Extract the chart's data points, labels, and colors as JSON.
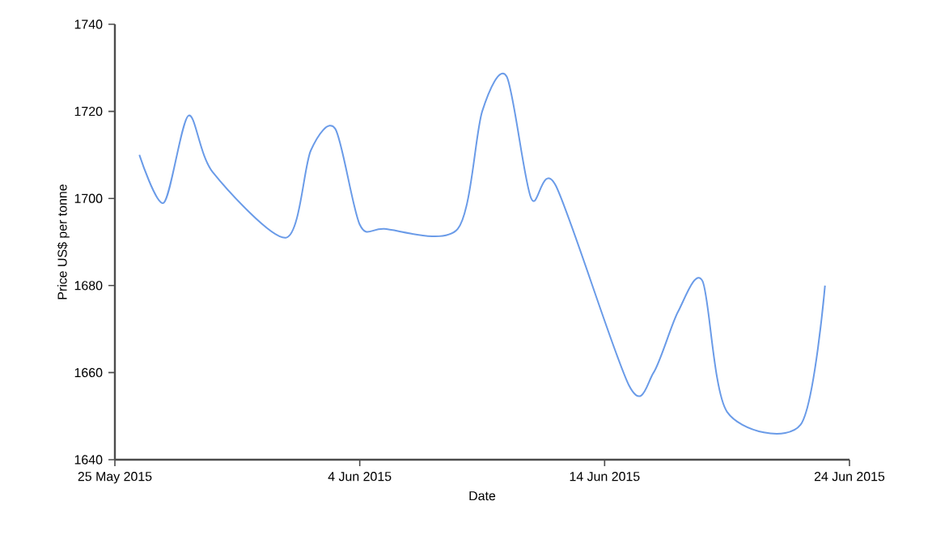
{
  "chart_data": {
    "type": "line",
    "xlabel": "Date",
    "ylabel": "Price US$ per tonne",
    "x": [
      "2015-05-26",
      "2015-05-27",
      "2015-05-28",
      "2015-05-29",
      "2015-06-01",
      "2015-06-02",
      "2015-06-03",
      "2015-06-04",
      "2015-06-05",
      "2015-06-08",
      "2015-06-09",
      "2015-06-10",
      "2015-06-11",
      "2015-06-12",
      "2015-06-15",
      "2015-06-16",
      "2015-06-17",
      "2015-06-18",
      "2015-06-19",
      "2015-06-22",
      "2015-06-23"
    ],
    "series": [
      {
        "color": "#6a9be8",
        "values": [
          1710,
          1699,
          1719,
          1706,
          1691,
          1711,
          1716,
          1694,
          1693,
          1693,
          1720,
          1728,
          1700,
          1703,
          1657,
          1660,
          1674,
          1681,
          1651,
          1648,
          1680
        ]
      }
    ],
    "xlim": [
      "2015-05-25",
      "2015-06-24"
    ],
    "xticks": [
      {
        "value": "2015-05-25",
        "label": "25 May 2015"
      },
      {
        "value": "2015-06-04",
        "label": "4 Jun 2015"
      },
      {
        "value": "2015-06-14",
        "label": "14 Jun 2015"
      },
      {
        "value": "2015-06-24",
        "label": "24 Jun 2015"
      }
    ],
    "ylim": [
      1640,
      1740
    ],
    "yticks": [
      1640,
      1660,
      1680,
      1700,
      1720,
      1740
    ],
    "grid": false,
    "legend": false,
    "marker": "none",
    "line_style": "solid"
  }
}
